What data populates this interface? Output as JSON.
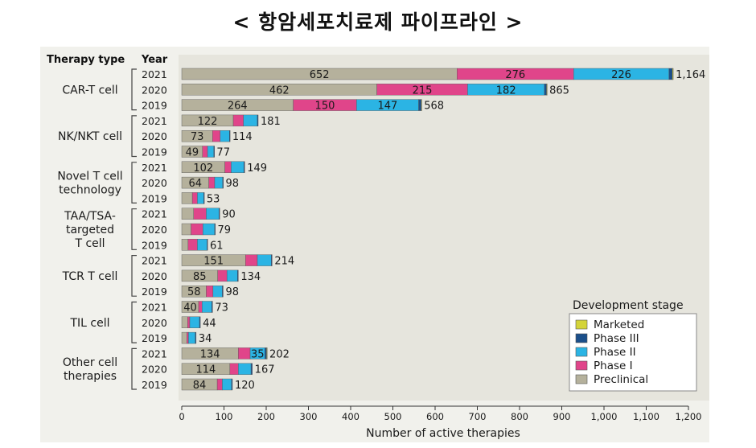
{
  "page": {
    "title": "< 항암세포치료제 파이프라인 >"
  },
  "chart_data": {
    "type": "bar",
    "orientation": "horizontal",
    "stacked": true,
    "header": {
      "group_col": "Therapy type",
      "year_col": "Year"
    },
    "xlabel": "Number of active therapies",
    "xlim": [
      0,
      1200
    ],
    "xticks": [
      "0",
      "100",
      "200",
      "300",
      "400",
      "500",
      "600",
      "700",
      "800",
      "900",
      "1,000",
      "1,100",
      "1,200"
    ],
    "grid": false,
    "legend": {
      "title": "Development stage",
      "placement": "bottom-right",
      "entries": [
        {
          "name": "Marketed",
          "color": "#d4d43a"
        },
        {
          "name": "Phase III",
          "color": "#1b4f8a"
        },
        {
          "name": "Phase II",
          "color": "#2bb4e4"
        },
        {
          "name": "Phase I",
          "color": "#e0458a"
        },
        {
          "name": "Preclinical",
          "color": "#b5b19c"
        }
      ]
    },
    "stage_order": [
      "Preclinical",
      "Phase I",
      "Phase II",
      "Phase III",
      "Marketed"
    ],
    "groups": [
      {
        "label": [
          "CAR-T cell"
        ],
        "rows": [
          {
            "year": "2021",
            "total": 1164,
            "total_label": "1,164",
            "segments": [
              652,
              276,
              226,
              8,
              2
            ],
            "seg_labels": [
              "652",
              "276",
              "226",
              "",
              ""
            ]
          },
          {
            "year": "2020",
            "total": 865,
            "total_label": "865",
            "segments": [
              462,
              215,
              182,
              5,
              1
            ],
            "seg_labels": [
              "462",
              "215",
              "182",
              "",
              ""
            ]
          },
          {
            "year": "2019",
            "total": 568,
            "total_label": "568",
            "segments": [
              264,
              150,
              147,
              6,
              1
            ],
            "seg_labels": [
              "264",
              "150",
              "147",
              "",
              ""
            ]
          }
        ]
      },
      {
        "label": [
          "NK/NKT cell"
        ],
        "rows": [
          {
            "year": "2021",
            "total": 181,
            "total_label": "181",
            "segments": [
              122,
              24,
              33,
              2,
              0
            ],
            "seg_labels": [
              "122",
              "",
              "",
              "",
              ""
            ]
          },
          {
            "year": "2020",
            "total": 114,
            "total_label": "114",
            "segments": [
              73,
              18,
              22,
              1,
              0
            ],
            "seg_labels": [
              "73",
              "",
              "",
              "",
              ""
            ]
          },
          {
            "year": "2019",
            "total": 77,
            "total_label": "77",
            "segments": [
              49,
              12,
              15,
              1,
              0
            ],
            "seg_labels": [
              "49",
              "",
              "",
              "",
              ""
            ]
          }
        ]
      },
      {
        "label": [
          "Novel T cell",
          "technology"
        ],
        "rows": [
          {
            "year": "2021",
            "total": 149,
            "total_label": "149",
            "segments": [
              102,
              15,
              30,
              2,
              0
            ],
            "seg_labels": [
              "102",
              "",
              "",
              "",
              ""
            ]
          },
          {
            "year": "2020",
            "total": 98,
            "total_label": "98",
            "segments": [
              64,
              14,
              19,
              1,
              0
            ],
            "seg_labels": [
              "64",
              "",
              "",
              "",
              ""
            ]
          },
          {
            "year": "2019",
            "total": 53,
            "total_label": "53",
            "segments": [
              25,
              12,
              15,
              1,
              0
            ],
            "seg_labels": [
              "",
              "",
              "",
              "",
              ""
            ]
          }
        ]
      },
      {
        "label": [
          "TAA/TSA-",
          "targeted",
          "T cell"
        ],
        "rows": [
          {
            "year": "2021",
            "total": 90,
            "total_label": "90",
            "segments": [
              28,
              30,
              30,
              2,
              0
            ],
            "seg_labels": [
              "",
              "",
              "",
              "",
              ""
            ]
          },
          {
            "year": "2020",
            "total": 79,
            "total_label": "79",
            "segments": [
              22,
              28,
              28,
              1,
              0
            ],
            "seg_labels": [
              "",
              "",
              "",
              "",
              ""
            ]
          },
          {
            "year": "2019",
            "total": 61,
            "total_label": "61",
            "segments": [
              15,
              22,
              23,
              1,
              0
            ],
            "seg_labels": [
              "",
              "",
              "",
              "",
              ""
            ]
          }
        ]
      },
      {
        "label": [
          "TCR T cell"
        ],
        "rows": [
          {
            "year": "2021",
            "total": 214,
            "total_label": "214",
            "segments": [
              151,
              28,
              33,
              2,
              0
            ],
            "seg_labels": [
              "151",
              "",
              "",
              "",
              ""
            ]
          },
          {
            "year": "2020",
            "total": 134,
            "total_label": "134",
            "segments": [
              85,
              22,
              25,
              2,
              0
            ],
            "seg_labels": [
              "85",
              "",
              "",
              "",
              ""
            ]
          },
          {
            "year": "2019",
            "total": 98,
            "total_label": "98",
            "segments": [
              58,
              16,
              22,
              2,
              0
            ],
            "seg_labels": [
              "58",
              "",
              "",
              "",
              ""
            ]
          }
        ]
      },
      {
        "label": [
          "TIL cell"
        ],
        "rows": [
          {
            "year": "2021",
            "total": 73,
            "total_label": "73",
            "segments": [
              40,
              8,
              23,
              2,
              0
            ],
            "seg_labels": [
              "40",
              "",
              "",
              "",
              ""
            ]
          },
          {
            "year": "2020",
            "total": 44,
            "total_label": "44",
            "segments": [
              14,
              5,
              23,
              2,
              0
            ],
            "seg_labels": [
              "",
              "",
              "",
              "",
              ""
            ]
          },
          {
            "year": "2019",
            "total": 34,
            "total_label": "34",
            "segments": [
              12,
              4,
              16,
              2,
              0
            ],
            "seg_labels": [
              "",
              "",
              "",
              "",
              ""
            ]
          }
        ]
      },
      {
        "label": [
          "Other cell",
          "therapies"
        ],
        "rows": [
          {
            "year": "2021",
            "total": 202,
            "total_label": "202",
            "segments": [
              134,
              28,
              35,
              4,
              1
            ],
            "seg_labels": [
              "134",
              "",
              "35",
              "",
              ""
            ]
          },
          {
            "year": "2020",
            "total": 167,
            "total_label": "167",
            "segments": [
              114,
              20,
              30,
              3,
              0
            ],
            "seg_labels": [
              "114",
              "",
              "",
              "",
              ""
            ]
          },
          {
            "year": "2019",
            "total": 120,
            "total_label": "120",
            "segments": [
              84,
              12,
              22,
              2,
              0
            ],
            "seg_labels": [
              "84",
              "",
              "",
              "",
              ""
            ]
          }
        ]
      }
    ]
  }
}
